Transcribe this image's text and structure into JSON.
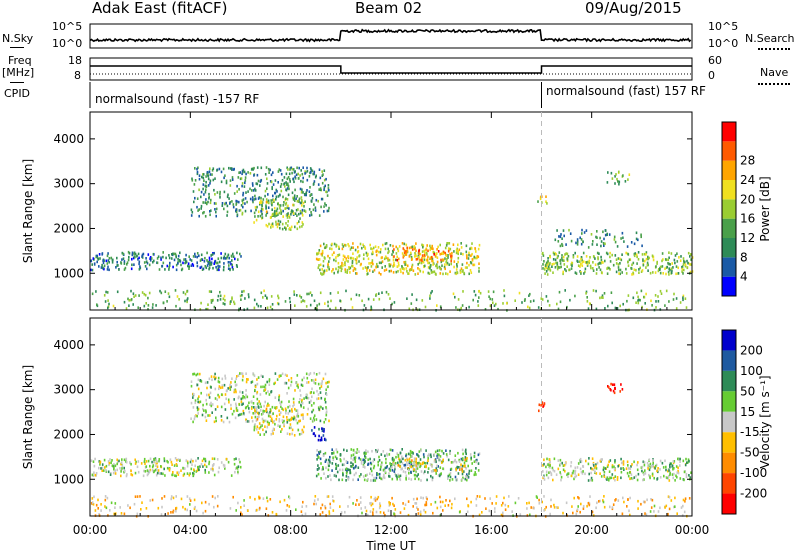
{
  "header": {
    "title": "Adak East (fitACF)",
    "beam": "Beam 02",
    "date": "09/Aug/2015"
  },
  "side_labels": {
    "nsky": "N.Sky",
    "freq_line1": "Freq",
    "freq_line2": "[MHz]",
    "cpid": "CPID",
    "nsearch": "N.Search",
    "nave": "Nave"
  },
  "noise_axis": {
    "left_ticks": [
      "10^5",
      "10^0"
    ],
    "right_ticks": [
      "10^5",
      "10^0"
    ]
  },
  "freq_axis": {
    "left_ticks": [
      "18",
      "8"
    ],
    "right_ticks": [
      "60",
      "0"
    ]
  },
  "cpid_labels": [
    {
      "text": "normalsound (fast) -157 RF",
      "start": "00:00"
    },
    {
      "text": "normalsound (fast) 157 RF",
      "start": "18:00"
    }
  ],
  "colors": {
    "power": [
      "#0000ff",
      "#1a5aa6",
      "#2e8b57",
      "#4aa04a",
      "#9acd32",
      "#f0e020",
      "#ffa500",
      "#ff5a00",
      "#ff0000"
    ],
    "velocity": [
      "#0000cc",
      "#1e5aa0",
      "#2e8b57",
      "#66cc33",
      "#c8c8c8",
      "#ffbf00",
      "#ff8c00",
      "#ff4500",
      "#ff0000"
    ]
  },
  "chart_data": [
    {
      "type": "heatmap",
      "name": "power",
      "ylabel": "Slant Range [km]",
      "xlabel": "Time UT",
      "x_ticks": [
        "00:00",
        "04:00",
        "08:00",
        "12:00",
        "16:00",
        "20:00",
        "00:00"
      ],
      "x_range_hours": [
        0,
        24
      ],
      "y_ticks": [
        1000,
        2000,
        3000,
        4000
      ],
      "ylim": [
        180,
        4600
      ],
      "colorbar_label": "Power [dB]",
      "colorbar_ticks": [
        4,
        8,
        12,
        16,
        20,
        24,
        28
      ],
      "scatter_regions": [
        {
          "t": [
            0.0,
            6.0
          ],
          "r": [
            1100,
            1500
          ],
          "level": 0.25,
          "dens": 0.9
        },
        {
          "t": [
            4.0,
            9.5
          ],
          "r": [
            2300,
            3400
          ],
          "level": 0.3,
          "dens": 0.6
        },
        {
          "t": [
            6.5,
            8.5
          ],
          "r": [
            2000,
            2700
          ],
          "level": 0.5,
          "dens": 0.7
        },
        {
          "t": [
            9.0,
            15.5
          ],
          "r": [
            1000,
            1700
          ],
          "level": 0.55,
          "dens": 0.85
        },
        {
          "t": [
            12.0,
            14.5
          ],
          "r": [
            1300,
            1600
          ],
          "level": 0.75,
          "dens": 0.7
        },
        {
          "t": [
            18.0,
            24.0
          ],
          "r": [
            1000,
            1500
          ],
          "level": 0.45,
          "dens": 0.85
        },
        {
          "t": [
            18.5,
            22.0
          ],
          "r": [
            1600,
            2000
          ],
          "level": 0.3,
          "dens": 0.4
        },
        {
          "t": [
            17.8,
            18.2
          ],
          "r": [
            2550,
            2750
          ],
          "level": 0.55,
          "dens": 0.9
        },
        {
          "t": [
            20.5,
            21.5
          ],
          "r": [
            3000,
            3300
          ],
          "level": 0.4,
          "dens": 0.5
        },
        {
          "t": [
            0.0,
            24.0
          ],
          "r": [
            200,
            650
          ],
          "level": 0.4,
          "dens": 0.25
        }
      ]
    },
    {
      "type": "heatmap",
      "name": "velocity",
      "ylabel": "Slant Range [km]",
      "xlabel": "Time UT",
      "x_ticks": [
        "00:00",
        "04:00",
        "08:00",
        "12:00",
        "16:00",
        "20:00",
        "00:00"
      ],
      "x_range_hours": [
        0,
        24
      ],
      "y_ticks": [
        1000,
        2000,
        3000,
        4000
      ],
      "ylim": [
        180,
        4600
      ],
      "colorbar_label": "Velocity [m s⁻¹]",
      "colorbar_ticks": [
        200,
        100,
        50,
        15,
        -15,
        -50,
        -100,
        -200
      ],
      "scatter_regions": [
        {
          "t": [
            0.0,
            6.0
          ],
          "r": [
            1100,
            1500
          ],
          "level": 0.45,
          "dens": 0.85
        },
        {
          "t": [
            4.0,
            9.5
          ],
          "r": [
            2300,
            3400
          ],
          "level": 0.45,
          "dens": 0.55
        },
        {
          "t": [
            6.5,
            8.5
          ],
          "r": [
            2000,
            2700
          ],
          "level": 0.5,
          "dens": 0.7
        },
        {
          "t": [
            8.8,
            9.4
          ],
          "r": [
            1900,
            2200
          ],
          "level": 0.05,
          "dens": 0.9
        },
        {
          "t": [
            9.0,
            15.5
          ],
          "r": [
            1000,
            1700
          ],
          "level": 0.35,
          "dens": 0.85
        },
        {
          "t": [
            12.0,
            15.0
          ],
          "r": [
            1200,
            1500
          ],
          "level": 0.55,
          "dens": 0.7
        },
        {
          "t": [
            18.0,
            24.0
          ],
          "r": [
            1000,
            1500
          ],
          "level": 0.45,
          "dens": 0.8
        },
        {
          "t": [
            17.8,
            18.2
          ],
          "r": [
            2550,
            2750
          ],
          "level": 0.95,
          "dens": 0.9
        },
        {
          "t": [
            20.5,
            21.2
          ],
          "r": [
            2900,
            3200
          ],
          "level": 0.95,
          "dens": 0.6
        },
        {
          "t": [
            0.0,
            24.0
          ],
          "r": [
            200,
            650
          ],
          "level": 0.6,
          "dens": 0.3
        }
      ]
    }
  ]
}
